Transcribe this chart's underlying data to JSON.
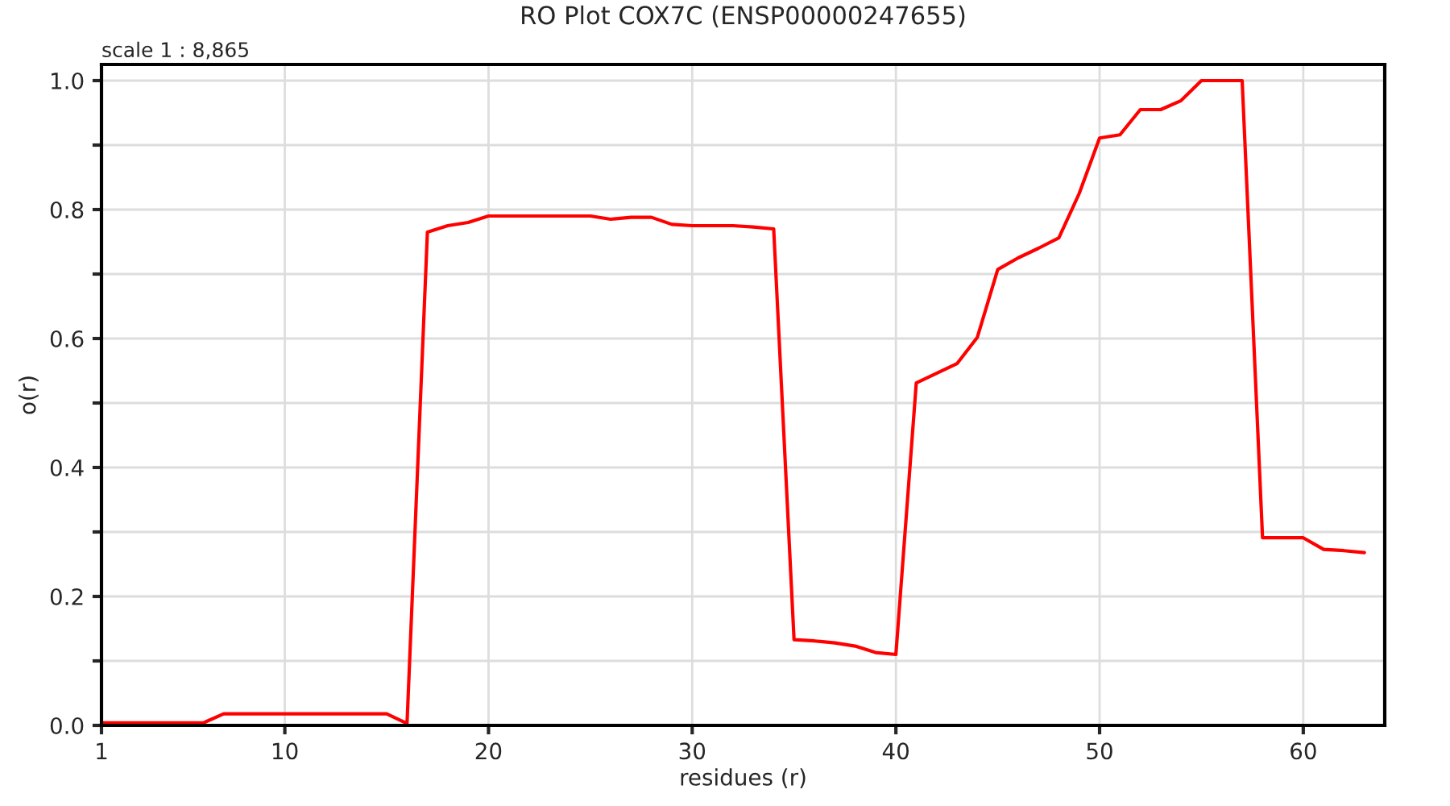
{
  "chart_data": {
    "type": "line",
    "title": "RO Plot COX7C (ENSP00000247655)",
    "xlabel": "residues (r)",
    "ylabel": "o(r)",
    "annotations": [
      "scale 1 : 8,865"
    ],
    "x": [
      1,
      2,
      3,
      4,
      5,
      6,
      7,
      8,
      9,
      10,
      11,
      12,
      13,
      14,
      15,
      16,
      17,
      18,
      19,
      20,
      21,
      22,
      23,
      24,
      25,
      26,
      27,
      28,
      29,
      30,
      31,
      32,
      33,
      34,
      35,
      36,
      37,
      38,
      39,
      40,
      41,
      42,
      43,
      44,
      45,
      46,
      47,
      48,
      49,
      50,
      51,
      52,
      53,
      54,
      55,
      56,
      57,
      58,
      59,
      60,
      61,
      62,
      63
    ],
    "series": [
      {
        "color": "#ff0000",
        "values": [
          0.004,
          0.004,
          0.004,
          0.004,
          0.004,
          0.004,
          0.018,
          0.018,
          0.018,
          0.018,
          0.018,
          0.018,
          0.018,
          0.018,
          0.018,
          0.003,
          0.765,
          0.775,
          0.78,
          0.79,
          0.79,
          0.79,
          0.79,
          0.79,
          0.79,
          0.785,
          0.788,
          0.788,
          0.777,
          0.775,
          0.775,
          0.775,
          0.773,
          0.77,
          0.133,
          0.131,
          0.128,
          0.123,
          0.113,
          0.11,
          0.531,
          0.546,
          0.561,
          0.602,
          0.707,
          0.725,
          0.74,
          0.756,
          0.825,
          0.911,
          0.916,
          0.955,
          0.955,
          0.969,
          1.0,
          1.0,
          1.0,
          0.291,
          0.291,
          0.291,
          0.273,
          0.271,
          0.268
        ]
      }
    ],
    "xlim": [
      1,
      64
    ],
    "xticks": [
      1,
      10,
      20,
      30,
      40,
      50,
      60
    ],
    "ylim": [
      0,
      1.025
    ],
    "yticks": [
      "0.0",
      {
        "value": 0.1,
        "label": null
      },
      0.2,
      {
        "value": 0.3,
        "label": null
      },
      0.4,
      {
        "value": 0.5,
        "label": null
      },
      0.6,
      {
        "value": 0.7,
        "label": null
      },
      0.8,
      {
        "value": 0.9,
        "label": null
      },
      "1.0"
    ],
    "grid": true,
    "marker": "none",
    "line_style": "solid",
    "legend": false
  }
}
